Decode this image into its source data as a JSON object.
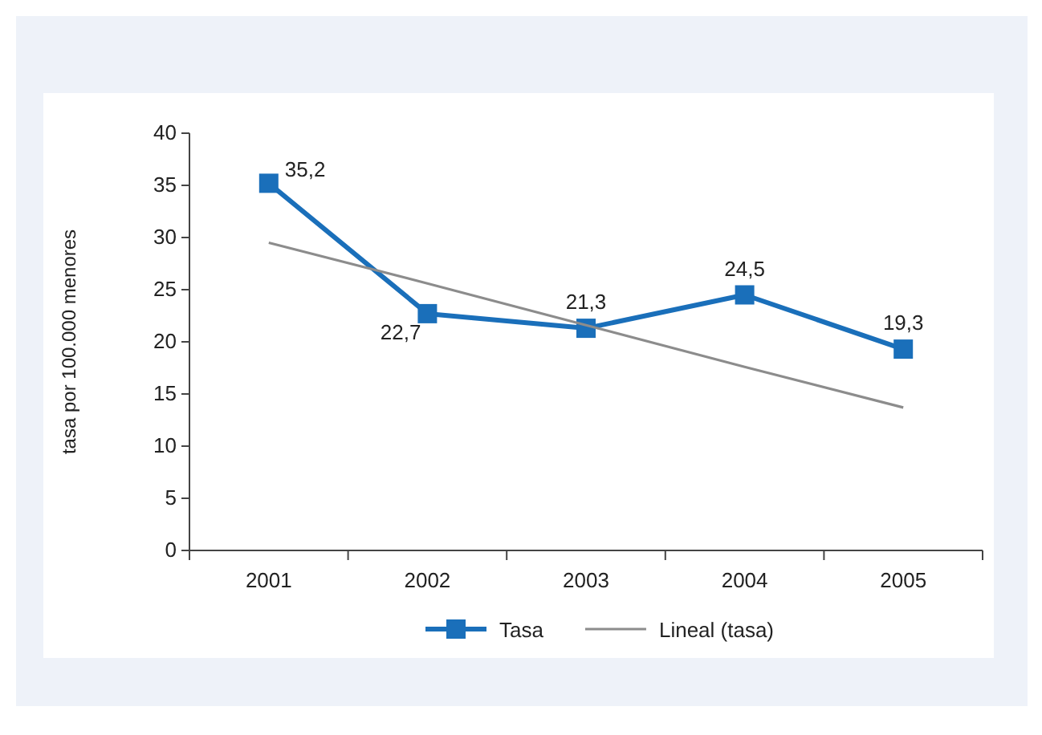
{
  "chart_data": {
    "type": "line",
    "ylabel": "tasa por 100.000 menores",
    "categories": [
      "2001",
      "2002",
      "2003",
      "2004",
      "2005"
    ],
    "ylim": [
      0,
      40
    ],
    "yticks": [
      0,
      5,
      10,
      15,
      20,
      25,
      30,
      35,
      40
    ],
    "grid": false,
    "legend": "bottom",
    "series": [
      {
        "name": "Tasa",
        "color": "#1a6fba",
        "values": [
          35.2,
          22.7,
          21.3,
          24.5,
          19.3
        ],
        "value_labels": [
          "35,2",
          "22,7",
          "21,3",
          "24,5",
          "19,3"
        ],
        "marker": "square",
        "line_style": "solid"
      },
      {
        "name": "Lineal (tasa)",
        "color": "#8c8c8c",
        "values": [
          29.5,
          25.6,
          21.6,
          17.6,
          13.7
        ],
        "marker": "none",
        "line_style": "solid"
      }
    ]
  }
}
